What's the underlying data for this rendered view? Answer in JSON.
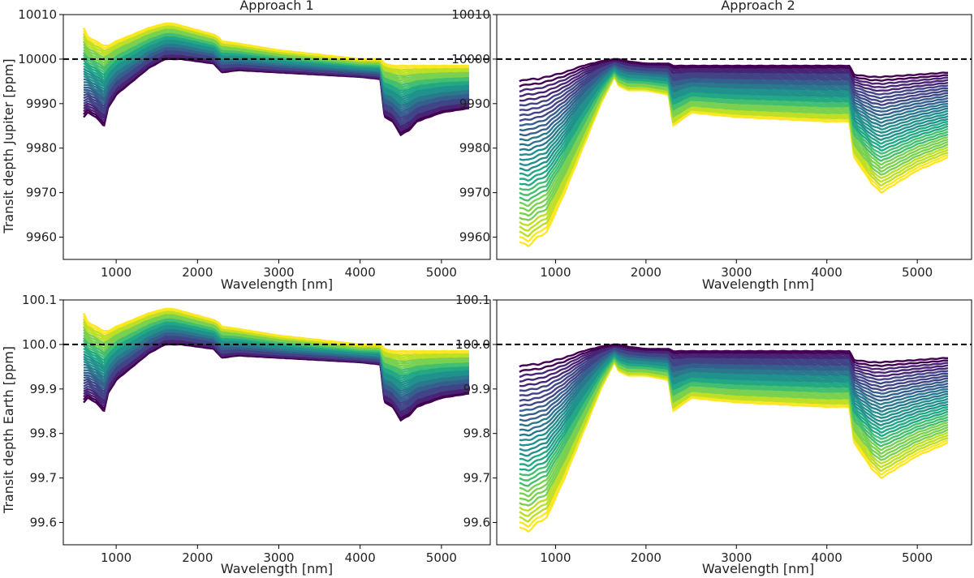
{
  "chart_data": [
    {
      "type": "line",
      "title": "Approach 1",
      "xlabel": "Wavelength [nm]",
      "ylabel": "Transit depth Jupiter [ppm]",
      "xlim": [
        350,
        5600
      ],
      "ylim": [
        9955,
        10010
      ],
      "xticks": [
        1000,
        2000,
        3000,
        4000,
        5000
      ],
      "xtick_labels": [
        "1000",
        "2000",
        "3000",
        "4000",
        "5000"
      ],
      "yticks": [
        9960,
        9970,
        9980,
        9990,
        10000,
        10010
      ],
      "ytick_labels": [
        "9960",
        "9970",
        "9980",
        "9990",
        "10000",
        "10010"
      ],
      "reference_line": 10000,
      "colormap": "viridis",
      "envelope": {
        "x": [
          600,
          650,
          750,
          850,
          900,
          1000,
          1200,
          1400,
          1600,
          1700,
          1800,
          2000,
          2200,
          2250,
          2300,
          2500,
          3000,
          3500,
          4000,
          4250,
          4300,
          4400,
          4500,
          4600,
          4700,
          5000,
          5350
        ],
        "upper": [
          10007,
          10005,
          10004,
          10003,
          10003,
          10004,
          10005.5,
          10007,
          10008,
          10008,
          10007.5,
          10006.5,
          10005.5,
          10005,
          10004,
          10003.5,
          10002,
          10001,
          10000,
          10000,
          9999,
          9998.5,
          9998.5,
          9998.5,
          9998.5,
          9998.5,
          9998.5
        ],
        "lower": [
          9987,
          9988,
          9987,
          9985,
          9989,
          9992,
          9995,
          9998,
          10000,
          10000,
          10000,
          9999.5,
          9999,
          9998,
          9997,
          9997.5,
          9997,
          9996.5,
          9996,
          9995.5,
          9987,
          9986,
          9983,
          9984,
          9986,
          9988,
          9989
        ]
      }
    },
    {
      "type": "line",
      "title": "Approach 2",
      "xlabel": "Wavelength [nm]",
      "ylabel": "",
      "xlim": [
        350,
        5600
      ],
      "ylim": [
        9955,
        10010
      ],
      "xticks": [
        1000,
        2000,
        3000,
        4000,
        5000
      ],
      "xtick_labels": [
        "1000",
        "2000",
        "3000",
        "4000",
        "5000"
      ],
      "yticks": [
        9960,
        9970,
        9980,
        9990,
        10000,
        10010
      ],
      "ytick_labels": [
        "9960",
        "9970",
        "9980",
        "9990",
        "10000",
        "10010"
      ],
      "reference_line": 10000,
      "colormap": "viridis",
      "envelope": {
        "x": [
          600,
          700,
          800,
          900,
          1100,
          1300,
          1500,
          1650,
          1700,
          1800,
          2000,
          2250,
          2300,
          2500,
          3000,
          3500,
          4000,
          4250,
          4300,
          4500,
          4600,
          5000,
          5350
        ],
        "upper": [
          9995,
          9995.5,
          9995.5,
          9996,
          9997,
          9998.5,
          9999.5,
          10000,
          10000,
          9999.5,
          9999,
          9999,
          9998.5,
          9998.5,
          9998.5,
          9998.5,
          9998.5,
          9998.5,
          9996.5,
          9996,
          9996,
          9996.5,
          9997
        ],
        "lower": [
          9959,
          9958,
          9960,
          9961,
          9970,
          9980,
          9990,
          9996,
          9994,
          9993,
          9993,
          9992,
          9985,
          9988,
          9987,
          9986.5,
          9986,
          9986,
          9978,
          9972,
          9970,
          9975,
          9978
        ]
      }
    },
    {
      "type": "line",
      "title": "",
      "xlabel": "Wavelength [nm]",
      "ylabel": "Transit depth Earth [ppm]",
      "xlim": [
        350,
        5600
      ],
      "ylim": [
        99.55,
        100.1
      ],
      "xticks": [
        1000,
        2000,
        3000,
        4000,
        5000
      ],
      "xtick_labels": [
        "1000",
        "2000",
        "3000",
        "4000",
        "5000"
      ],
      "yticks": [
        99.6,
        99.7,
        99.8,
        99.9,
        100.0,
        100.1
      ],
      "ytick_labels": [
        "99.6",
        "99.7",
        "99.8",
        "99.9",
        "100.0",
        "100.1"
      ],
      "reference_line": 100.0,
      "colormap": "viridis",
      "envelope": {
        "x": [
          600,
          650,
          750,
          850,
          900,
          1000,
          1200,
          1400,
          1600,
          1700,
          1800,
          2000,
          2200,
          2250,
          2300,
          2500,
          3000,
          3500,
          4000,
          4250,
          4300,
          4400,
          4500,
          4600,
          4700,
          5000,
          5350
        ],
        "upper": [
          100.07,
          100.05,
          100.04,
          100.03,
          100.03,
          100.04,
          100.055,
          100.07,
          100.08,
          100.08,
          100.075,
          100.065,
          100.055,
          100.05,
          100.04,
          100.035,
          100.02,
          100.01,
          100.0,
          100.0,
          99.99,
          99.985,
          99.985,
          99.985,
          99.985,
          99.985,
          99.985
        ],
        "lower": [
          99.87,
          99.88,
          99.87,
          99.85,
          99.89,
          99.92,
          99.95,
          99.98,
          100.0,
          100.0,
          100.0,
          99.995,
          99.99,
          99.98,
          99.97,
          99.975,
          99.97,
          99.965,
          99.96,
          99.955,
          99.87,
          99.86,
          99.83,
          99.84,
          99.86,
          99.88,
          99.89
        ]
      }
    },
    {
      "type": "line",
      "title": "",
      "xlabel": "Wavelength [nm]",
      "ylabel": "",
      "xlim": [
        350,
        5600
      ],
      "ylim": [
        99.55,
        100.1
      ],
      "xticks": [
        1000,
        2000,
        3000,
        4000,
        5000
      ],
      "xtick_labels": [
        "1000",
        "2000",
        "3000",
        "4000",
        "5000"
      ],
      "yticks": [
        99.6,
        99.7,
        99.8,
        99.9,
        100.0,
        100.1
      ],
      "ytick_labels": [
        "99.6",
        "99.7",
        "99.8",
        "99.9",
        "100.0",
        "100.1"
      ],
      "reference_line": 100.0,
      "colormap": "viridis",
      "envelope": {
        "x": [
          600,
          700,
          800,
          900,
          1100,
          1300,
          1500,
          1650,
          1700,
          1800,
          2000,
          2250,
          2300,
          2500,
          3000,
          3500,
          4000,
          4250,
          4300,
          4500,
          4600,
          5000,
          5350
        ],
        "upper": [
          99.95,
          99.955,
          99.955,
          99.96,
          99.97,
          99.985,
          99.995,
          100.0,
          100.0,
          99.995,
          99.99,
          99.99,
          99.985,
          99.985,
          99.985,
          99.985,
          99.985,
          99.985,
          99.965,
          99.96,
          99.96,
          99.965,
          99.97
        ],
        "lower": [
          99.59,
          99.58,
          99.6,
          99.61,
          99.7,
          99.8,
          99.9,
          99.96,
          99.94,
          99.93,
          99.93,
          99.92,
          99.85,
          99.88,
          99.87,
          99.865,
          99.86,
          99.86,
          99.78,
          99.72,
          99.7,
          99.75,
          99.78
        ]
      }
    }
  ]
}
